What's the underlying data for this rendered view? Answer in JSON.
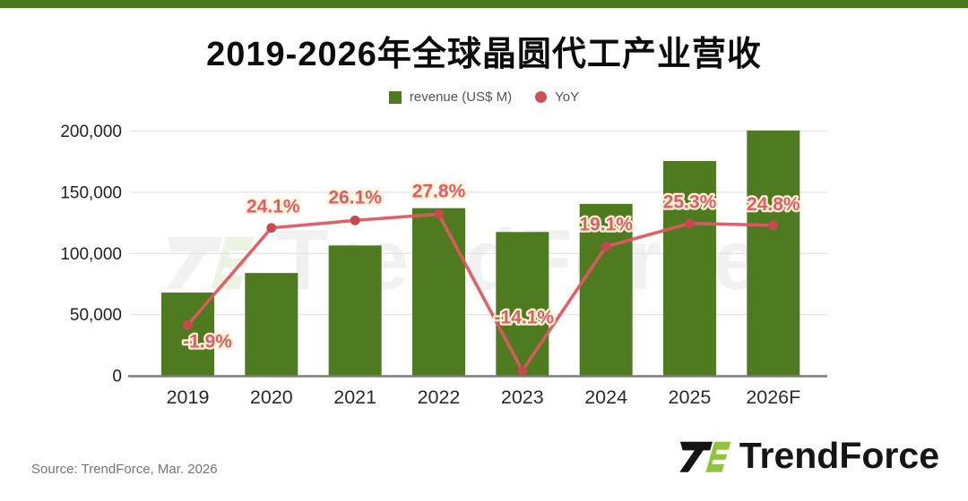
{
  "meta": {
    "title": "2019-2026年全球晶圆代工产业营收",
    "source_note": "Source: TrendForce, Mar. 2026",
    "brand_name": "TrendForce",
    "watermark_text": "TrendForce"
  },
  "legend": {
    "items": [
      {
        "label": "revenue (US$ M)",
        "swatch": "square",
        "color": "#4e7b1f"
      },
      {
        "label": "YoY",
        "swatch": "circle",
        "color": "#cf4f58"
      }
    ]
  },
  "colors": {
    "accent_strip": "#4a7a1e",
    "bar": "#4e7b1f",
    "line": "#dd5a62",
    "marker": "#c8484f",
    "yoy_label": "#e25a69",
    "yoy_label_halo": "#fdf3d2",
    "gridline": "#e3e3e3",
    "axis_line": "#7c7c7c",
    "axis_text": "#2a2a2a",
    "tick_text": "#222222"
  },
  "chart_data": {
    "type": "bar+line",
    "title": "2019-2026年全球晶圆代工产业营收",
    "categories": [
      "2019",
      "2020",
      "2021",
      "2022",
      "2023",
      "2024",
      "2025",
      "2026F"
    ],
    "series": [
      {
        "name": "revenue (US$ M)",
        "type": "bar",
        "axis": "left",
        "values": [
          68000,
          84000,
          106500,
          137000,
          117500,
          140500,
          175500,
          200500
        ]
      },
      {
        "name": "YoY",
        "type": "line",
        "axis": "right-hidden",
        "unit": "%",
        "values": [
          -1.9,
          24.1,
          26.1,
          27.8,
          -14.1,
          19.1,
          25.3,
          24.8
        ],
        "labels": [
          "-1.9%",
          "24.1%",
          "26.1%",
          "27.8%",
          "-14.1%",
          "19.1%",
          "25.3%",
          "24.8%"
        ]
      }
    ],
    "y_axis": {
      "min": 0,
      "max": 200000,
      "tick_values": [
        0,
        50000,
        100000,
        150000,
        200000
      ],
      "tick_labels": [
        "0",
        "50,000",
        "100,000",
        "150,000",
        "200,000"
      ]
    },
    "y2_axis": {
      "visible": false,
      "approx_range_percent": [
        -15.5,
        50
      ]
    },
    "grid": true,
    "legend_position": "top-center"
  }
}
